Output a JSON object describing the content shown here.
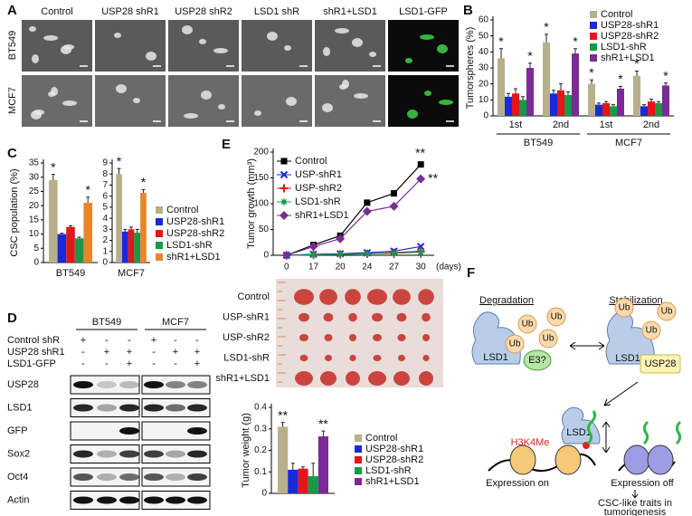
{
  "panel_labels": [
    "A",
    "B",
    "C",
    "D",
    "E",
    "F"
  ],
  "panel_a": {
    "columns": [
      "Control",
      "USP28 shR1",
      "USP28 shR2",
      "LSD1 shR",
      "shR1+LSD1",
      "LSD1-GFP"
    ],
    "rows": [
      "BT549",
      "MCF7"
    ]
  },
  "chart_data": [
    {
      "type": "bar",
      "ylabel": "Tumorspheres (%)",
      "groups": [
        {
          "label": "BT549",
          "categories": [
            "1st",
            "2nd"
          ]
        },
        {
          "label": "MCF7",
          "categories": [
            "1st",
            "2nd"
          ]
        }
      ],
      "series": [
        {
          "name": "Control",
          "color": "#b8b08c",
          "values": [
            36,
            46,
            20,
            25
          ],
          "errors": [
            6,
            5,
            2.5,
            3
          ],
          "significance": [
            "*",
            "*",
            "*",
            "*"
          ]
        },
        {
          "name": "USP28-shR1",
          "color": "#1a2ad8",
          "values": [
            12,
            14,
            7,
            6
          ],
          "errors": [
            2,
            2,
            1,
            1
          ]
        },
        {
          "name": "USP28-shR2",
          "color": "#e3161b",
          "values": [
            14,
            16,
            8,
            9
          ],
          "errors": [
            3,
            4,
            1,
            1.5
          ]
        },
        {
          "name": "LSD1-shR",
          "color": "#159a48",
          "values": [
            10,
            13,
            6,
            8
          ],
          "errors": [
            2,
            2,
            1,
            1
          ]
        },
        {
          "name": "shR1+LSD1",
          "color": "#7a2b95",
          "values": [
            30,
            39,
            17,
            19
          ],
          "errors": [
            3,
            3,
            1.5,
            1.5
          ],
          "significance": [
            "*",
            "*",
            "*",
            "*"
          ]
        }
      ],
      "ylim": [
        0,
        60
      ],
      "yticks": [
        0,
        10,
        20,
        30,
        40,
        50,
        60
      ],
      "legend": "upper right"
    },
    {
      "type": "bar",
      "ylabel": "CSC population (%)",
      "categories": [
        "BT549"
      ],
      "series": [
        {
          "name": "Control",
          "color": "#b8b08c",
          "values": [
            29
          ],
          "errors": [
            2
          ],
          "significance": [
            "*"
          ]
        },
        {
          "name": "USP28-shR1",
          "color": "#1a2ad8",
          "values": [
            10
          ],
          "errors": [
            0.3
          ]
        },
        {
          "name": "USP28-shR2",
          "color": "#e3161b",
          "values": [
            12.5
          ],
          "errors": [
            0.4
          ]
        },
        {
          "name": "LSD1-shR",
          "color": "#159a48",
          "values": [
            8.5
          ],
          "errors": [
            0.4
          ]
        },
        {
          "name": "shR1+LSD1",
          "color": "#e8862c",
          "values": [
            21
          ],
          "errors": [
            2
          ],
          "significance": [
            "*"
          ]
        }
      ],
      "ylim": [
        0,
        35
      ],
      "yticks": [
        0,
        5,
        10,
        15,
        20,
        25,
        30,
        35
      ],
      "legend": "right"
    },
    {
      "type": "bar",
      "categories": [
        "MCF7"
      ],
      "series": [
        {
          "color": "#b8b08c",
          "values": [
            8
          ],
          "errors": [
            0.5
          ],
          "significance": [
            "*"
          ]
        },
        {
          "color": "#1a2ad8",
          "values": [
            2.8
          ],
          "errors": [
            0.2
          ]
        },
        {
          "color": "#e3161b",
          "values": [
            3
          ],
          "errors": [
            0.2
          ]
        },
        {
          "color": "#159a48",
          "values": [
            2.7
          ],
          "errors": [
            0.3
          ]
        },
        {
          "color": "#e8862c",
          "values": [
            6.3
          ],
          "errors": [
            0.3
          ],
          "significance": [
            "*"
          ]
        }
      ],
      "ylim": [
        0,
        9
      ],
      "yticks": [
        0,
        1,
        2,
        3,
        4,
        5,
        6,
        7,
        8,
        9
      ]
    },
    {
      "type": "line",
      "ylabel": "Tumor growth (mm³)",
      "categories": [
        0,
        17,
        20,
        24,
        27,
        30
      ],
      "x_unit": "(days)",
      "series": [
        {
          "name": "Control",
          "color": "#000000",
          "marker": "square",
          "values": [
            0,
            20,
            38,
            102,
            120,
            176
          ],
          "significance": [
            null,
            null,
            null,
            null,
            null,
            "**"
          ]
        },
        {
          "name": "USP-shR1",
          "color": "#1a2ad8",
          "marker": "x",
          "values": [
            0,
            2,
            3,
            5,
            8,
            17
          ]
        },
        {
          "name": "USP-shR2",
          "color": "#e3161b",
          "marker": "plus",
          "values": [
            0,
            1,
            2,
            3,
            5,
            8
          ]
        },
        {
          "name": "LSD1-shR",
          "color": "#159a48",
          "marker": "star",
          "values": [
            0,
            1,
            2,
            3,
            4,
            6
          ]
        },
        {
          "name": "shR1+LSD1",
          "color": "#7a2b95",
          "marker": "diamond",
          "values": [
            0,
            17,
            32,
            85,
            95,
            148
          ],
          "significance": [
            null,
            null,
            null,
            null,
            null,
            "**"
          ]
        }
      ],
      "ylim": [
        0,
        200
      ],
      "yticks": [
        0,
        50,
        100,
        150,
        200
      ],
      "legend": "upper left"
    },
    {
      "type": "bar",
      "ylabel": "Tumor weight (g)",
      "categories": [
        null
      ],
      "series": [
        {
          "name": "Control",
          "color": "#b8b08c",
          "values": [
            0.31
          ],
          "errors": [
            0.02
          ],
          "significance": [
            "**"
          ]
        },
        {
          "name": "USP28-shR1",
          "color": "#1a2ad8",
          "values": [
            0.11
          ],
          "errors": [
            0.03
          ]
        },
        {
          "name": "USP28-shR2",
          "color": "#e3161b",
          "values": [
            0.115
          ],
          "errors": [
            0.008
          ]
        },
        {
          "name": "LSD1-shR",
          "color": "#159a48",
          "values": [
            0.08
          ],
          "errors": [
            0.06
          ]
        },
        {
          "name": "shR1+LSD1",
          "color": "#7a2b95",
          "values": [
            0.265
          ],
          "errors": [
            0.025
          ],
          "significance": [
            "**"
          ]
        }
      ],
      "ylim": [
        0,
        0.4
      ],
      "yticks": [
        0,
        0.1,
        0.2,
        0.3,
        0.4
      ],
      "legend": "right"
    }
  ],
  "panel_d": {
    "cell_lines": [
      "BT549",
      "MCF7"
    ],
    "conditions": [
      {
        "label": "Control shR",
        "marks": [
          "+",
          "-",
          "-",
          "+",
          "-",
          "-"
        ]
      },
      {
        "label": "USP28 shR1",
        "marks": [
          "-",
          "+",
          "+",
          "-",
          "+",
          "+"
        ]
      },
      {
        "label": "LSD1-GFP",
        "marks": [
          "-",
          "-",
          "+",
          "-",
          "-",
          "+"
        ]
      }
    ],
    "proteins": [
      "USP28",
      "LSD1",
      "GFP",
      "Sox2",
      "Oct4",
      "Actin"
    ]
  },
  "panel_e_image": {
    "rows": [
      "Control",
      "USP-shR1",
      "USP-shR2",
      "LSD1-shR",
      "shR1+LSD1"
    ]
  },
  "panel_f": {
    "degradation": "Degradation",
    "stabilization": "Stabilization",
    "ub": "Ub",
    "lsd1": "LSD1",
    "e3": "E3?",
    "usp28": "USP28",
    "h3k4me": "H3K4Me",
    "expression_on": "Expression on",
    "expression_off": "Expression off",
    "outcome": [
      "CSC-like traits in",
      "tumorigenesis"
    ]
  }
}
